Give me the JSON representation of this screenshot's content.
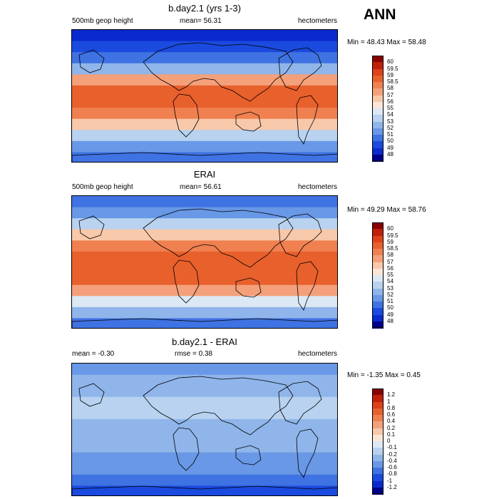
{
  "season": "ANN",
  "panels": [
    {
      "title": "b.day2.1 (yrs 1-3)",
      "left_label": "500mb geop height",
      "center_label": "mean=  56.31",
      "right_label": "hectometers",
      "minmax": "Min =  48.43 Max =  58.48",
      "levels": [
        "60",
        "59.5",
        "59",
        "58.5",
        "58",
        "57",
        "56",
        "55",
        "54",
        "53",
        "52",
        "51",
        "50",
        "49",
        "48"
      ],
      "colors": [
        "#8b0000",
        "#c0200a",
        "#e0401a",
        "#e8602c",
        "#f08050",
        "#f4a07a",
        "#f8c8aa",
        "#fbe6d6",
        "#dce8f4",
        "#b8d2ef",
        "#8fb5ea",
        "#6898e6",
        "#3f72e2",
        "#1a4ade",
        "#0a2acd",
        "#00008b"
      ],
      "zone_colors": [
        "#0a2acd",
        "#1a4ade",
        "#3f72e2",
        "#8fb5ea",
        "#f4a07a",
        "#e8602c",
        "#e8602c",
        "#f08050",
        "#f8c8aa",
        "#b8d2ef",
        "#6898e6",
        "#3f72e2"
      ]
    },
    {
      "title": "ERAI",
      "left_label": "500mb geop height",
      "center_label": "mean=  56.61",
      "right_label": "hectometers",
      "minmax": "Min =  49.29 Max =  58.76",
      "levels": [
        "60",
        "59.5",
        "59",
        "58.5",
        "58",
        "57",
        "56",
        "55",
        "54",
        "53",
        "52",
        "51",
        "50",
        "49",
        "48"
      ],
      "colors": [
        "#8b0000",
        "#c0200a",
        "#e0401a",
        "#e8602c",
        "#f08050",
        "#f4a07a",
        "#f8c8aa",
        "#fbe6d6",
        "#dce8f4",
        "#b8d2ef",
        "#8fb5ea",
        "#6898e6",
        "#3f72e2",
        "#1a4ade",
        "#0a2acd",
        "#00008b"
      ],
      "zone_colors": [
        "#3f72e2",
        "#6898e6",
        "#b8d2ef",
        "#f8c8aa",
        "#f08050",
        "#e8602c",
        "#e8602c",
        "#e8602c",
        "#f4a07a",
        "#dce8f4",
        "#8fb5ea",
        "#3f72e2"
      ]
    },
    {
      "title": "b.day2.1 - ERAI",
      "left_label": "mean =  -0.30",
      "center_label": "rmse =   0.38",
      "right_label": "hectometers",
      "minmax": "Min =  -1.35 Max =   0.45",
      "levels": [
        "1.2",
        "1",
        "0.8",
        "0.6",
        "0.4",
        "0.2",
        "0.1",
        "0",
        "-0.1",
        "-0.2",
        "-0.4",
        "-0.6",
        "-0.8",
        "-1",
        "-1.2"
      ],
      "colors": [
        "#8b0000",
        "#c0200a",
        "#e0401a",
        "#e8602c",
        "#f08050",
        "#f4a07a",
        "#f8c8aa",
        "#fbe6d6",
        "#dce8f4",
        "#b8d2ef",
        "#8fb5ea",
        "#6898e6",
        "#3f72e2",
        "#1a4ade",
        "#0a2acd",
        "#00008b"
      ],
      "zone_colors": [
        "#6898e6",
        "#8fb5ea",
        "#8fb5ea",
        "#b8d2ef",
        "#b8d2ef",
        "#8fb5ea",
        "#8fb5ea",
        "#8fb5ea",
        "#6898e6",
        "#6898e6",
        "#3f72e2",
        "#1a4ade"
      ]
    }
  ]
}
